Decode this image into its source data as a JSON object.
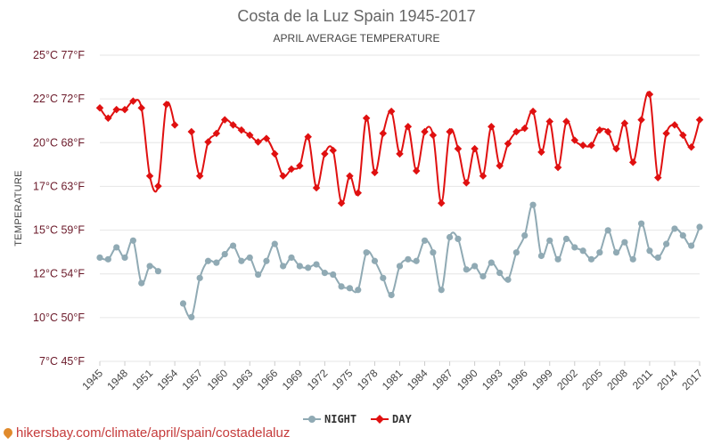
{
  "chart_data": {
    "type": "line",
    "title": "Costa de la Luz Spain 1945-2017",
    "subtitle": "APRIL AVERAGE TEMPERATURE",
    "ylabel": "TEMPERATURE",
    "ylim": [
      7,
      25
    ],
    "y_ticks": [
      "7°C 45°F",
      "10°C 50°F",
      "12°C 54°F",
      "15°C 59°F",
      "17°C 63°F",
      "20°C 68°F",
      "22°C 72°F",
      "25°C 77°F"
    ],
    "x_ticks": [
      "1945",
      "1948",
      "1951",
      "1954",
      "1957",
      "1960",
      "1963",
      "1966",
      "1969",
      "1972",
      "1975",
      "1978",
      "1981",
      "1984",
      "1987",
      "1990",
      "1993",
      "1996",
      "1999",
      "2002",
      "2005",
      "2008",
      "2011",
      "2014",
      "2017"
    ],
    "x": [
      1945,
      1946,
      1947,
      1948,
      1949,
      1950,
      1951,
      1952,
      1953,
      1954,
      1955,
      1956,
      1957,
      1958,
      1959,
      1960,
      1961,
      1962,
      1963,
      1964,
      1965,
      1966,
      1967,
      1968,
      1969,
      1970,
      1971,
      1972,
      1973,
      1974,
      1975,
      1976,
      1977,
      1978,
      1979,
      1980,
      1981,
      1982,
      1983,
      1984,
      1985,
      1986,
      1987,
      1988,
      1989,
      1990,
      1991,
      1992,
      1993,
      1994,
      1995,
      1996,
      1997,
      1998,
      1999,
      2000,
      2001,
      2002,
      2003,
      2004,
      2005,
      2006,
      2007,
      2008,
      2009,
      2010,
      2011,
      2012,
      2013,
      2014,
      2015,
      2016,
      2017
    ],
    "series": [
      {
        "name": "NIGHT",
        "color": "#90aab4",
        "values": [
          13.1,
          13.0,
          13.7,
          13.1,
          14.1,
          11.6,
          12.6,
          12.3,
          null,
          null,
          10.4,
          9.6,
          11.9,
          12.9,
          12.8,
          13.3,
          13.8,
          12.9,
          13.1,
          12.1,
          12.9,
          13.9,
          12.6,
          13.1,
          12.6,
          12.5,
          12.7,
          12.2,
          12.1,
          11.4,
          11.3,
          11.2,
          13.4,
          12.9,
          11.9,
          10.9,
          12.6,
          13.0,
          12.9,
          14.1,
          13.4,
          11.2,
          14.3,
          14.2,
          12.4,
          12.6,
          12.0,
          12.8,
          12.2,
          11.8,
          13.4,
          14.4,
          16.2,
          13.2,
          14.1,
          13.0,
          14.2,
          13.7,
          13.5,
          13.0,
          13.4,
          14.7,
          13.4,
          14.0,
          13.0,
          15.1,
          13.5,
          13.1,
          13.9,
          14.8,
          14.4,
          13.8,
          14.9
        ]
      },
      {
        "name": "DAY",
        "color": "#e01010",
        "values": [
          21.9,
          21.3,
          21.8,
          21.8,
          22.3,
          21.9,
          17.9,
          17.3,
          22.1,
          20.9,
          null,
          20.5,
          17.9,
          19.9,
          20.4,
          21.2,
          20.9,
          20.6,
          20.3,
          19.9,
          20.1,
          19.2,
          17.9,
          18.3,
          18.5,
          20.2,
          17.2,
          19.2,
          19.4,
          16.3,
          17.9,
          16.9,
          21.3,
          18.1,
          20.4,
          21.7,
          19.2,
          20.8,
          18.2,
          20.5,
          20.3,
          16.3,
          20.5,
          19.5,
          17.5,
          19.5,
          17.9,
          20.8,
          18.5,
          19.8,
          20.5,
          20.7,
          21.7,
          19.3,
          21.1,
          18.4,
          21.1,
          20.0,
          19.7,
          19.7,
          20.6,
          20.5,
          19.5,
          21.0,
          18.7,
          21.2,
          22.7,
          17.8,
          20.4,
          20.9,
          20.3,
          19.6,
          21.2
        ]
      }
    ],
    "grid": true,
    "legend": "bottom"
  },
  "source": {
    "text": "hikersbay.com/climate/april/spain/costadelaluz",
    "icon": "location-pin-icon"
  }
}
